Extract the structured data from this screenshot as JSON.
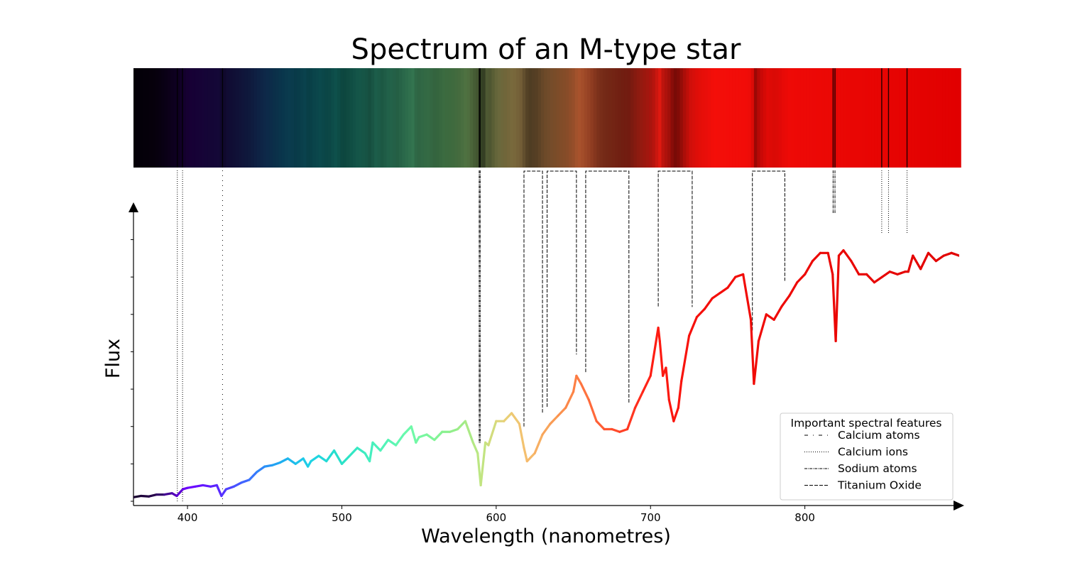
{
  "chart_data": {
    "type": "line",
    "title": "Spectrum of an M-type star",
    "xlabel": "Wavelength (nanometres)",
    "ylabel": "Flux",
    "xlim": [
      365,
      900
    ],
    "ylim": [
      0,
      1
    ],
    "x_ticks": [
      400,
      500,
      600,
      700,
      800
    ],
    "y_ticks": [
      0.0,
      0.14,
      0.28,
      0.42,
      0.56,
      0.7,
      0.84,
      0.98
    ],
    "y_tick_labels_shown": false,
    "grid": false,
    "legend": {
      "title": "Important spectral features",
      "placement": "lower-right",
      "entries": [
        {
          "label": "Calcium atoms",
          "style": "loose-dashdot"
        },
        {
          "label": "Calcium ions",
          "style": "dotted"
        },
        {
          "label": "Sodium atoms",
          "style": "dashdot"
        },
        {
          "label": "Titanium Oxide",
          "style": "dashed"
        }
      ]
    },
    "series": [
      {
        "x": [
          365,
          370,
          375,
          380,
          385,
          390,
          393,
          397,
          400,
          405,
          410,
          415,
          419,
          422,
          425,
          430,
          435,
          440,
          445,
          450,
          455,
          460,
          465,
          470,
          475,
          478,
          480,
          485,
          490,
          495,
          500,
          505,
          510,
          515,
          518,
          520,
          525,
          530,
          535,
          540,
          545,
          548,
          550,
          555,
          560,
          565,
          570,
          575,
          580,
          585,
          588,
          590,
          593,
          595,
          600,
          605,
          610,
          615,
          618,
          620,
          625,
          630,
          635,
          640,
          645,
          650,
          652,
          655,
          660,
          665,
          670,
          675,
          680,
          685,
          690,
          695,
          700,
          705,
          706,
          708,
          710,
          712,
          715,
          718,
          720,
          725,
          730,
          735,
          740,
          745,
          750,
          755,
          760,
          765,
          767,
          770,
          775,
          780,
          785,
          790,
          795,
          800,
          805,
          810,
          815,
          818,
          820,
          822,
          825,
          830,
          835,
          840,
          845,
          850,
          855,
          860,
          865,
          867,
          870,
          875,
          880,
          885,
          890,
          895,
          900
        ],
        "y": [
          0.015,
          0.02,
          0.018,
          0.025,
          0.025,
          0.03,
          0.02,
          0.045,
          0.05,
          0.055,
          0.06,
          0.055,
          0.06,
          0.02,
          0.045,
          0.055,
          0.07,
          0.08,
          0.11,
          0.13,
          0.135,
          0.145,
          0.16,
          0.14,
          0.16,
          0.13,
          0.15,
          0.17,
          0.15,
          0.19,
          0.14,
          0.17,
          0.2,
          0.18,
          0.15,
          0.22,
          0.19,
          0.23,
          0.21,
          0.25,
          0.28,
          0.22,
          0.24,
          0.25,
          0.23,
          0.26,
          0.26,
          0.27,
          0.3,
          0.22,
          0.18,
          0.06,
          0.22,
          0.21,
          0.3,
          0.3,
          0.33,
          0.29,
          0.2,
          0.15,
          0.18,
          0.25,
          0.29,
          0.32,
          0.35,
          0.41,
          0.47,
          0.44,
          0.38,
          0.3,
          0.27,
          0.27,
          0.26,
          0.27,
          0.35,
          0.41,
          0.47,
          0.65,
          0.6,
          0.47,
          0.5,
          0.38,
          0.3,
          0.35,
          0.45,
          0.62,
          0.69,
          0.72,
          0.76,
          0.78,
          0.8,
          0.84,
          0.85,
          0.68,
          0.44,
          0.6,
          0.7,
          0.68,
          0.73,
          0.77,
          0.82,
          0.85,
          0.9,
          0.93,
          0.93,
          0.85,
          0.6,
          0.92,
          0.94,
          0.9,
          0.85,
          0.85,
          0.82,
          0.84,
          0.86,
          0.85,
          0.86,
          0.86,
          0.92,
          0.87,
          0.93,
          0.9,
          0.92,
          0.93,
          0.92
        ]
      }
    ],
    "annotations": {
      "calcium_atoms": [
        422.7
      ],
      "calcium_ions": [
        393.4,
        396.8,
        849.8,
        854.2,
        866.2
      ],
      "sodium_atoms": [
        589.0,
        589.6,
        818.3,
        819.5
      ],
      "titanium_oxide_bands": [
        [
          618,
          630
        ],
        [
          633,
          652
        ],
        [
          658,
          686
        ],
        [
          705,
          727
        ],
        [
          766,
          787
        ]
      ]
    }
  }
}
